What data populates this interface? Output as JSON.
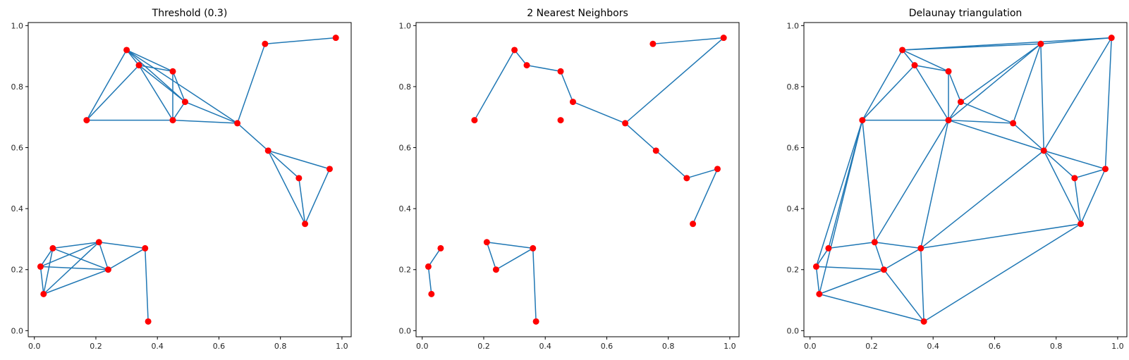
{
  "chart_data": {
    "type": "scatter",
    "points": [
      [
        0.02,
        0.21
      ],
      [
        0.03,
        0.12
      ],
      [
        0.06,
        0.27
      ],
      [
        0.17,
        0.69
      ],
      [
        0.21,
        0.29
      ],
      [
        0.24,
        0.2
      ],
      [
        0.3,
        0.92
      ],
      [
        0.34,
        0.87
      ],
      [
        0.36,
        0.27
      ],
      [
        0.37,
        0.03
      ],
      [
        0.45,
        0.85
      ],
      [
        0.45,
        0.69
      ],
      [
        0.49,
        0.75
      ],
      [
        0.66,
        0.68
      ],
      [
        0.75,
        0.94
      ],
      [
        0.76,
        0.59
      ],
      [
        0.86,
        0.5
      ],
      [
        0.88,
        0.35
      ],
      [
        0.96,
        0.53
      ],
      [
        0.98,
        0.96
      ]
    ],
    "xlim": [
      -0.02,
      1.03
    ],
    "ylim": [
      -0.02,
      1.01
    ],
    "xticks": [
      "0.0",
      "0.2",
      "0.4",
      "0.6",
      "0.8",
      "1.0"
    ],
    "yticks": [
      "0.0",
      "0.2",
      "0.4",
      "0.6",
      "0.8",
      "1.0"
    ],
    "xtick_values": [
      0.0,
      0.2,
      0.4,
      0.6,
      0.8,
      1.0
    ],
    "ytick_values": [
      0.0,
      0.2,
      0.4,
      0.6,
      0.8,
      1.0
    ],
    "grid": false,
    "node_color": "#ff0000",
    "edge_color": "#1f77b4",
    "panels": [
      {
        "title": "Threshold (0.3)",
        "edges": [
          [
            0,
            1
          ],
          [
            0,
            2
          ],
          [
            0,
            4
          ],
          [
            0,
            5
          ],
          [
            1,
            2
          ],
          [
            1,
            4
          ],
          [
            1,
            5
          ],
          [
            2,
            4
          ],
          [
            2,
            5
          ],
          [
            4,
            5
          ],
          [
            4,
            8
          ],
          [
            5,
            8
          ],
          [
            8,
            9
          ],
          [
            3,
            6
          ],
          [
            3,
            7
          ],
          [
            3,
            11
          ],
          [
            6,
            7
          ],
          [
            6,
            10
          ],
          [
            6,
            12
          ],
          [
            6,
            13
          ],
          [
            7,
            10
          ],
          [
            7,
            11
          ],
          [
            7,
            12
          ],
          [
            10,
            11
          ],
          [
            10,
            12
          ],
          [
            11,
            12
          ],
          [
            11,
            13
          ],
          [
            12,
            13
          ],
          [
            13,
            14
          ],
          [
            13,
            15
          ],
          [
            14,
            19
          ],
          [
            15,
            16
          ],
          [
            15,
            17
          ],
          [
            15,
            18
          ],
          [
            16,
            17
          ],
          [
            17,
            18
          ]
        ]
      },
      {
        "title": "2 Nearest Neighbors",
        "edges": [
          [
            0,
            1
          ],
          [
            0,
            2
          ],
          [
            4,
            5
          ],
          [
            4,
            8
          ],
          [
            5,
            8
          ],
          [
            8,
            9
          ],
          [
            3,
            6
          ],
          [
            6,
            7
          ],
          [
            7,
            10
          ],
          [
            10,
            12
          ],
          [
            12,
            13
          ],
          [
            13,
            15
          ],
          [
            13,
            19
          ],
          [
            14,
            19
          ],
          [
            15,
            16
          ],
          [
            16,
            18
          ],
          [
            17,
            18
          ]
        ]
      },
      {
        "title": "Delaunay triangulation",
        "edges": [
          [
            0,
            1
          ],
          [
            0,
            2
          ],
          [
            0,
            3
          ],
          [
            0,
            5
          ],
          [
            1,
            3
          ],
          [
            1,
            5
          ],
          [
            1,
            9
          ],
          [
            2,
            3
          ],
          [
            2,
            4
          ],
          [
            3,
            4
          ],
          [
            3,
            6
          ],
          [
            3,
            7
          ],
          [
            3,
            11
          ],
          [
            4,
            5
          ],
          [
            4,
            8
          ],
          [
            4,
            11
          ],
          [
            5,
            8
          ],
          [
            5,
            9
          ],
          [
            8,
            9
          ],
          [
            8,
            11
          ],
          [
            8,
            15
          ],
          [
            8,
            17
          ],
          [
            9,
            17
          ],
          [
            6,
            7
          ],
          [
            6,
            10
          ],
          [
            6,
            14
          ],
          [
            6,
            19
          ],
          [
            7,
            10
          ],
          [
            7,
            11
          ],
          [
            10,
            11
          ],
          [
            10,
            12
          ],
          [
            11,
            12
          ],
          [
            11,
            13
          ],
          [
            11,
            14
          ],
          [
            11,
            15
          ],
          [
            12,
            13
          ],
          [
            12,
            14
          ],
          [
            13,
            14
          ],
          [
            13,
            15
          ],
          [
            14,
            15
          ],
          [
            14,
            19
          ],
          [
            15,
            16
          ],
          [
            15,
            17
          ],
          [
            15,
            18
          ],
          [
            15,
            19
          ],
          [
            16,
            17
          ],
          [
            16,
            18
          ],
          [
            17,
            18
          ],
          [
            18,
            19
          ]
        ]
      }
    ]
  }
}
